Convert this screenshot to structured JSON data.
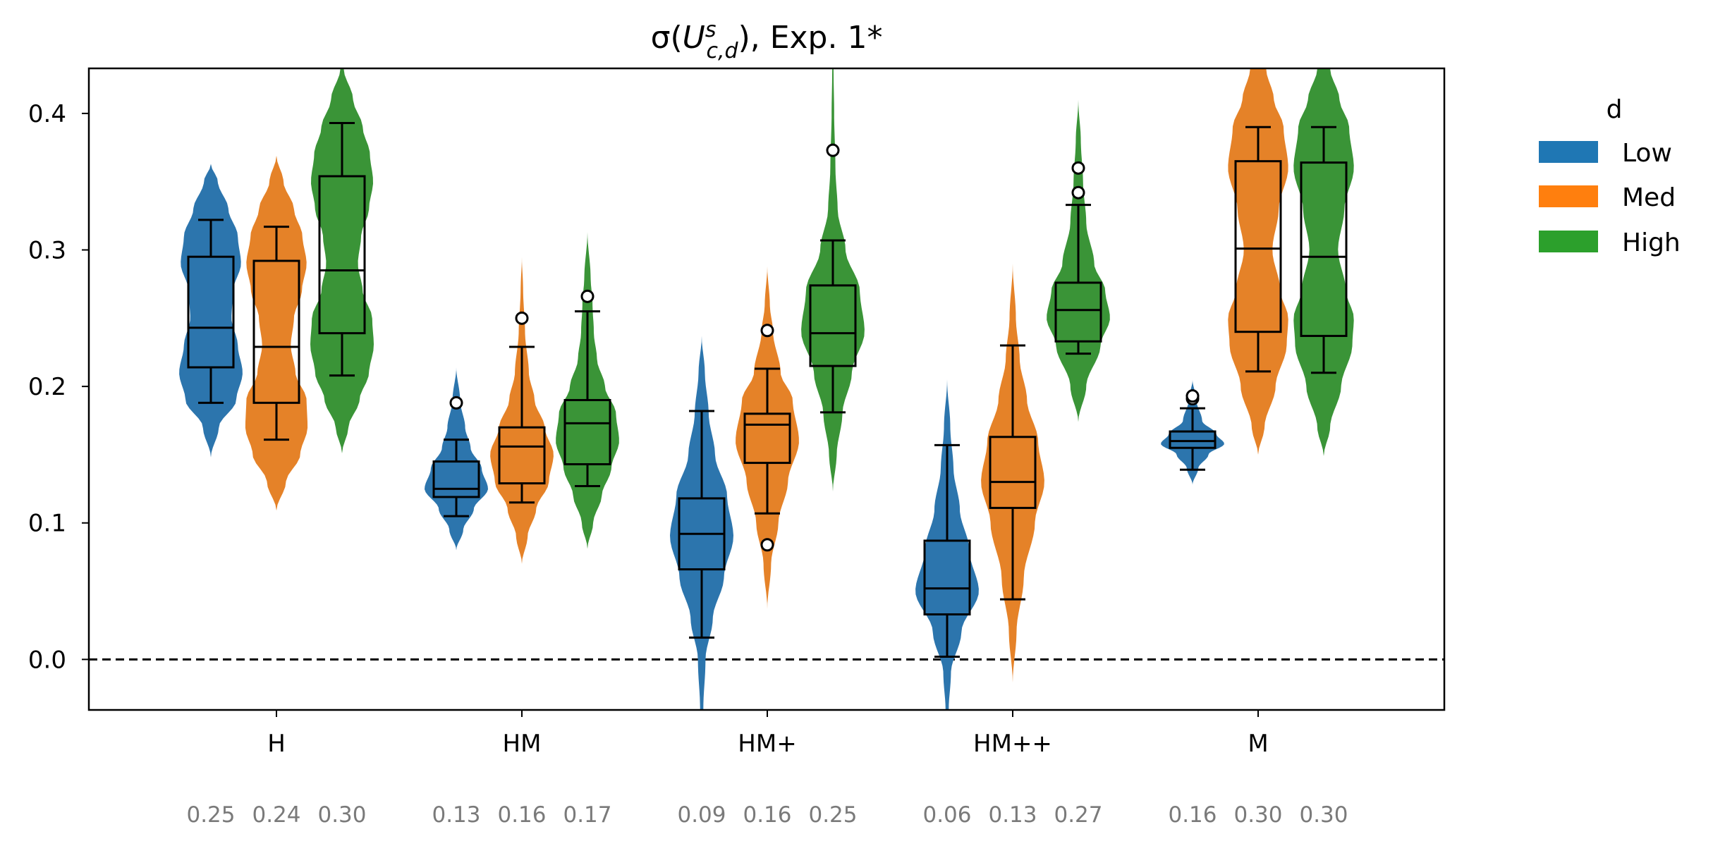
{
  "chart_data": {
    "type": "violin+box",
    "title": "σ(U^s_{c,d}), Exp. 1*",
    "title_parts": {
      "pre": "σ(",
      "var": "U",
      "sup": "s",
      "sub": "c,d",
      "post": "), Exp. 1*"
    },
    "xlabel": "",
    "ylabel": "",
    "ylim": [
      -0.037,
      0.433
    ],
    "yticks": [
      0.0,
      0.1,
      0.2,
      0.3,
      0.4
    ],
    "ytick_labels": [
      "0.0",
      "0.1",
      "0.2",
      "0.3",
      "0.4"
    ],
    "reference_line": {
      "y": 0.0,
      "style": "dashed"
    },
    "categories": [
      "H",
      "HM",
      "HM+",
      "HM++",
      "M"
    ],
    "legend": {
      "title": "d",
      "position": "outside-right",
      "entries": [
        {
          "name": "Low",
          "color": "#1f77b4"
        },
        {
          "name": "Med",
          "color": "#ff7f0e"
        },
        {
          "name": "High",
          "color": "#2ca02c"
        }
      ]
    },
    "series_colors": {
      "Low": "#2c75ad",
      "Med": "#e58228",
      "High": "#3a9437"
    },
    "mean_labels": [
      [
        "0.25",
        "0.24",
        "0.30"
      ],
      [
        "0.13",
        "0.16",
        "0.17"
      ],
      [
        "0.09",
        "0.16",
        "0.25"
      ],
      [
        "0.06",
        "0.13",
        "0.27"
      ],
      [
        "0.16",
        "0.30",
        "0.30"
      ]
    ],
    "groups": [
      {
        "category": "H",
        "items": [
          {
            "series": "Low",
            "violin": [
              [
                0.148,
                0
              ],
              [
                0.17,
                0.25
              ],
              [
                0.19,
                0.8
              ],
              [
                0.21,
                1.0
              ],
              [
                0.23,
                0.85
              ],
              [
                0.25,
                0.65
              ],
              [
                0.27,
                0.7
              ],
              [
                0.29,
                0.95
              ],
              [
                0.31,
                0.85
              ],
              [
                0.33,
                0.55
              ],
              [
                0.35,
                0.22
              ],
              [
                0.363,
                0
              ]
            ],
            "box": {
              "q1": 0.214,
              "median": 0.243,
              "q3": 0.295,
              "whislo": 0.188,
              "whishi": 0.322
            },
            "fliers": []
          },
          {
            "series": "Med",
            "violin": [
              [
                0.109,
                0
              ],
              [
                0.13,
                0.3
              ],
              [
                0.15,
                0.75
              ],
              [
                0.17,
                0.98
              ],
              [
                0.19,
                0.95
              ],
              [
                0.21,
                0.6
              ],
              [
                0.23,
                0.45
              ],
              [
                0.25,
                0.55
              ],
              [
                0.27,
                0.8
              ],
              [
                0.29,
                0.95
              ],
              [
                0.31,
                0.82
              ],
              [
                0.33,
                0.55
              ],
              [
                0.35,
                0.22
              ],
              [
                0.369,
                0
              ]
            ],
            "box": {
              "q1": 0.188,
              "median": 0.229,
              "q3": 0.292,
              "whislo": 0.161,
              "whishi": 0.317
            },
            "fliers": []
          },
          {
            "series": "High",
            "violin": [
              [
                0.151,
                0
              ],
              [
                0.17,
                0.2
              ],
              [
                0.19,
                0.55
              ],
              [
                0.21,
                0.85
              ],
              [
                0.23,
                1.0
              ],
              [
                0.25,
                0.95
              ],
              [
                0.27,
                0.65
              ],
              [
                0.29,
                0.5
              ],
              [
                0.31,
                0.6
              ],
              [
                0.33,
                0.85
              ],
              [
                0.35,
                0.98
              ],
              [
                0.37,
                0.88
              ],
              [
                0.39,
                0.65
              ],
              [
                0.41,
                0.35
              ],
              [
                0.433,
                0.05
              ]
            ],
            "box": {
              "q1": 0.239,
              "median": 0.285,
              "q3": 0.354,
              "whislo": 0.208,
              "whishi": 0.393
            },
            "fliers": []
          }
        ]
      },
      {
        "category": "HM",
        "items": [
          {
            "series": "Low",
            "violin": [
              [
                0.08,
                0
              ],
              [
                0.095,
                0.22
              ],
              [
                0.11,
                0.55
              ],
              [
                0.125,
                1.0
              ],
              [
                0.14,
                0.8
              ],
              [
                0.155,
                0.45
              ],
              [
                0.17,
                0.28
              ],
              [
                0.19,
                0.12
              ],
              [
                0.214,
                0
              ]
            ],
            "box": {
              "q1": 0.119,
              "median": 0.125,
              "q3": 0.145,
              "whislo": 0.105,
              "whishi": 0.161
            },
            "fliers": [
              0.188
            ]
          },
          {
            "series": "Med",
            "violin": [
              [
                0.07,
                0
              ],
              [
                0.09,
                0.18
              ],
              [
                0.11,
                0.45
              ],
              [
                0.13,
                0.85
              ],
              [
                0.15,
                1.0
              ],
              [
                0.17,
                0.72
              ],
              [
                0.19,
                0.4
              ],
              [
                0.21,
                0.22
              ],
              [
                0.24,
                0.1
              ],
              [
                0.27,
                0.04
              ],
              [
                0.295,
                0
              ]
            ],
            "box": {
              "q1": 0.129,
              "median": 0.156,
              "q3": 0.17,
              "whislo": 0.115,
              "whishi": 0.229
            },
            "fliers": [
              0.25
            ]
          },
          {
            "series": "High",
            "violin": [
              [
                0.081,
                0
              ],
              [
                0.1,
                0.18
              ],
              [
                0.12,
                0.45
              ],
              [
                0.14,
                0.75
              ],
              [
                0.16,
                1.0
              ],
              [
                0.18,
                0.9
              ],
              [
                0.2,
                0.55
              ],
              [
                0.22,
                0.3
              ],
              [
                0.24,
                0.2
              ],
              [
                0.26,
                0.16
              ],
              [
                0.28,
                0.1
              ],
              [
                0.313,
                0
              ]
            ],
            "box": {
              "q1": 0.143,
              "median": 0.173,
              "q3": 0.19,
              "whislo": 0.127,
              "whishi": 0.255
            },
            "fliers": [
              0.266
            ]
          }
        ]
      },
      {
        "category": "HM+",
        "items": [
          {
            "series": "Low",
            "violin": [
              [
                -0.037,
                0.05
              ],
              [
                0.0,
                0.12
              ],
              [
                0.03,
                0.35
              ],
              [
                0.06,
                0.7
              ],
              [
                0.09,
                1.0
              ],
              [
                0.12,
                0.8
              ],
              [
                0.15,
                0.42
              ],
              [
                0.18,
                0.22
              ],
              [
                0.21,
                0.1
              ],
              [
                0.237,
                0
              ]
            ],
            "box": {
              "q1": 0.066,
              "median": 0.092,
              "q3": 0.118,
              "whislo": 0.016,
              "whishi": 0.182
            },
            "fliers": []
          },
          {
            "series": "Med",
            "violin": [
              [
                0.037,
                0
              ],
              [
                0.07,
                0.12
              ],
              [
                0.1,
                0.35
              ],
              [
                0.13,
                0.65
              ],
              [
                0.16,
                1.0
              ],
              [
                0.19,
                0.8
              ],
              [
                0.21,
                0.42
              ],
              [
                0.24,
                0.18
              ],
              [
                0.26,
                0.08
              ],
              [
                0.288,
                0
              ]
            ],
            "box": {
              "q1": 0.144,
              "median": 0.172,
              "q3": 0.18,
              "whislo": 0.107,
              "whishi": 0.213
            },
            "fliers": [
              0.084,
              0.241
            ]
          },
          {
            "series": "High",
            "violin": [
              [
                0.123,
                0
              ],
              [
                0.15,
                0.12
              ],
              [
                0.18,
                0.3
              ],
              [
                0.21,
                0.6
              ],
              [
                0.24,
                1.0
              ],
              [
                0.27,
                0.85
              ],
              [
                0.3,
                0.4
              ],
              [
                0.33,
                0.15
              ],
              [
                0.36,
                0.08
              ],
              [
                0.4,
                0.04
              ],
              [
                0.433,
                0.02
              ]
            ],
            "box": {
              "q1": 0.215,
              "median": 0.239,
              "q3": 0.274,
              "whislo": 0.181,
              "whishi": 0.307
            },
            "fliers": [
              0.373
            ]
          }
        ]
      },
      {
        "category": "HM++",
        "items": [
          {
            "series": "Low",
            "violin": [
              [
                -0.037,
                0.05
              ],
              [
                -0.01,
                0.12
              ],
              [
                0.02,
                0.45
              ],
              [
                0.05,
                1.0
              ],
              [
                0.08,
                0.7
              ],
              [
                0.11,
                0.4
              ],
              [
                0.14,
                0.2
              ],
              [
                0.17,
                0.1
              ],
              [
                0.205,
                0
              ]
            ],
            "box": {
              "q1": 0.033,
              "median": 0.052,
              "q3": 0.087,
              "whislo": 0.002,
              "whishi": 0.157
            },
            "fliers": []
          },
          {
            "series": "Med",
            "violin": [
              [
                -0.017,
                0
              ],
              [
                0.02,
                0.12
              ],
              [
                0.06,
                0.35
              ],
              [
                0.1,
                0.7
              ],
              [
                0.13,
                1.0
              ],
              [
                0.16,
                0.8
              ],
              [
                0.19,
                0.45
              ],
              [
                0.22,
                0.22
              ],
              [
                0.25,
                0.1
              ],
              [
                0.29,
                0
              ]
            ],
            "box": {
              "q1": 0.111,
              "median": 0.13,
              "q3": 0.163,
              "whislo": 0.044,
              "whishi": 0.23
            },
            "fliers": []
          },
          {
            "series": "High",
            "violin": [
              [
                0.174,
                0
              ],
              [
                0.2,
                0.25
              ],
              [
                0.23,
                0.7
              ],
              [
                0.25,
                1.0
              ],
              [
                0.27,
                0.85
              ],
              [
                0.29,
                0.5
              ],
              [
                0.32,
                0.25
              ],
              [
                0.35,
                0.15
              ],
              [
                0.38,
                0.08
              ],
              [
                0.41,
                0
              ]
            ],
            "box": {
              "q1": 0.233,
              "median": 0.256,
              "q3": 0.276,
              "whislo": 0.224,
              "whishi": 0.333
            },
            "fliers": [
              0.342,
              0.36
            ]
          }
        ]
      },
      {
        "category": "M",
        "items": [
          {
            "series": "Low",
            "violin": [
              [
                0.128,
                0
              ],
              [
                0.14,
                0.18
              ],
              [
                0.15,
                0.5
              ],
              [
                0.158,
                1.0
              ],
              [
                0.165,
                0.75
              ],
              [
                0.175,
                0.3
              ],
              [
                0.19,
                0.12
              ],
              [
                0.205,
                0
              ]
            ],
            "box": {
              "q1": 0.155,
              "median": 0.16,
              "q3": 0.167,
              "whislo": 0.139,
              "whishi": 0.184
            },
            "fliers": [
              0.191,
              0.193
            ]
          },
          {
            "series": "Med",
            "violin": [
              [
                0.15,
                0
              ],
              [
                0.17,
                0.2
              ],
              [
                0.2,
                0.55
              ],
              [
                0.23,
                0.9
              ],
              [
                0.25,
                0.95
              ],
              [
                0.27,
                0.7
              ],
              [
                0.3,
                0.45
              ],
              [
                0.33,
                0.65
              ],
              [
                0.36,
                0.95
              ],
              [
                0.39,
                0.8
              ],
              [
                0.41,
                0.5
              ],
              [
                0.433,
                0.25
              ]
            ],
            "box": {
              "q1": 0.24,
              "median": 0.301,
              "q3": 0.365,
              "whislo": 0.211,
              "whishi": 0.39
            },
            "fliers": []
          },
          {
            "series": "High",
            "violin": [
              [
                0.149,
                0
              ],
              [
                0.17,
                0.2
              ],
              [
                0.2,
                0.55
              ],
              [
                0.23,
                0.9
              ],
              [
                0.25,
                0.95
              ],
              [
                0.27,
                0.7
              ],
              [
                0.3,
                0.45
              ],
              [
                0.33,
                0.65
              ],
              [
                0.36,
                0.95
              ],
              [
                0.39,
                0.8
              ],
              [
                0.41,
                0.5
              ],
              [
                0.433,
                0.2
              ]
            ],
            "box": {
              "q1": 0.237,
              "median": 0.295,
              "q3": 0.364,
              "whislo": 0.21,
              "whishi": 0.39
            },
            "fliers": []
          }
        ]
      }
    ]
  }
}
